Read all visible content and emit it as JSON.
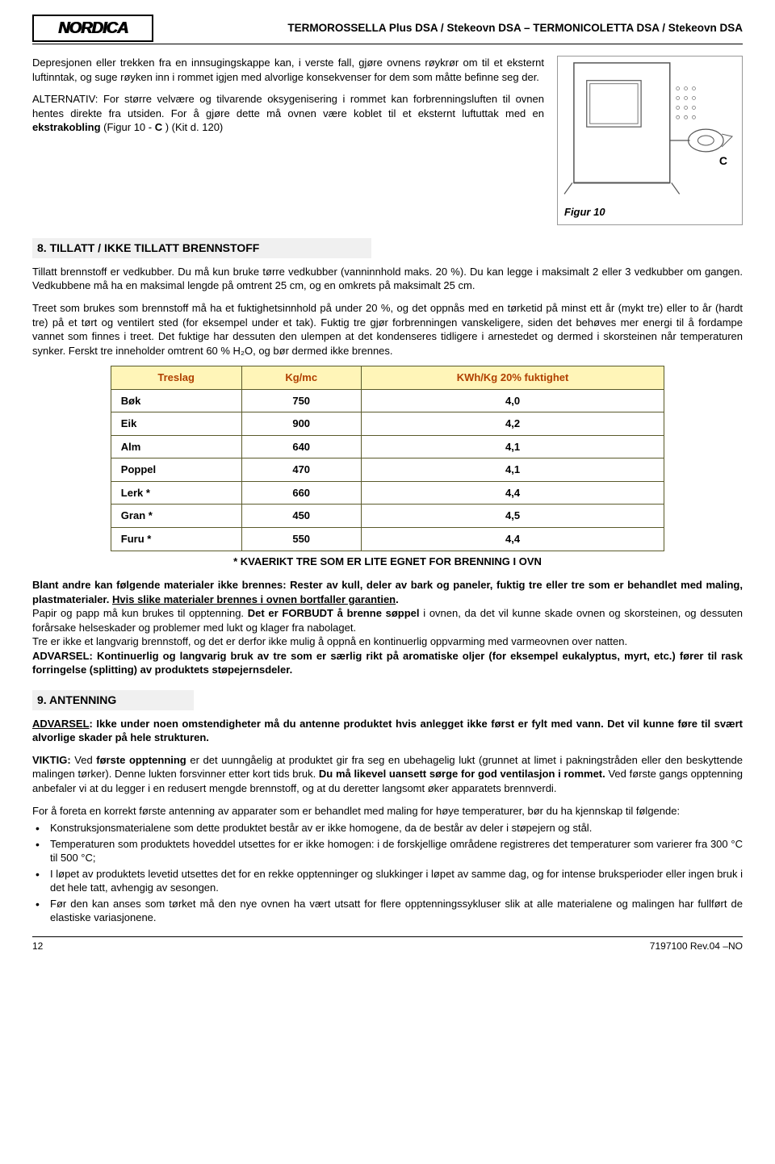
{
  "header": {
    "logo_text": "NORDICA",
    "title": "TERMOROSSELLA Plus DSA / Stekeovn DSA – TERMONICOLETTA DSA / Stekeovn DSA"
  },
  "intro": {
    "p1": "Depresjonen eller trekken fra en innsugingskappe kan, i verste fall, gjøre ovnens røykrør om til et eksternt luftinntak, og suge røyken inn i rommet igjen med alvorlige konsekvenser for dem som måtte befinne seg der.",
    "p2_prefix": "ALTERNATIV: ",
    "p2_body": "For større velvære og tilvarende oksygenisering i rommet kan forbrenningsluften til ovnen hentes direkte fra utsiden. For å gjøre dette må ovnen være koblet til et eksternt luftuttak med en ",
    "p2_bold": "ekstrakobling",
    "p2_after": " (Figur 10 - ",
    "p2_c": "C",
    "p2_end": " ) (Kit d. 120)"
  },
  "figure": {
    "label_c": "C",
    "caption": "Figur 10"
  },
  "section8": {
    "title": "8.  TILLATT / IKKE TILLATT BRENNSTOFF",
    "p1": "Tillatt brennstoff er vedkubber. Du må kun bruke tørre vedkubber (vanninnhold maks. 20 %). Du kan legge i maksimalt 2 eller 3 vedkubber om gangen. Vedkubbene må ha en maksimal lengde på omtrent 25 cm, og en omkrets på maksimalt 25 cm.",
    "p2": "Treet som brukes som brennstoff må ha et fuktighetsinnhold på under 20 %, og det oppnås med en tørketid på minst ett år (mykt tre) eller to år (hardt tre) på et tørt og ventilert sted (for eksempel under et tak). Fuktig tre gjør forbrenningen vanskeligere, siden det behøves mer energi til å fordampe vannet som finnes i treet. Det fuktige har dessuten den ulempen at det kondenseres tidligere i arnestedet og dermed i skorsteinen når temperaturen synker. Ferskt tre inneholder omtrent 60 % H₂O, og bør dermed ikke brennes."
  },
  "wood_table": {
    "columns": [
      "Treslag",
      "Kg/mc",
      "KWh/Kg  20% fuktighet"
    ],
    "rows": [
      [
        "Bøk",
        "750",
        "4,0"
      ],
      [
        "Eik",
        "900",
        "4,2"
      ],
      [
        "Alm",
        "640",
        "4,1"
      ],
      [
        "Poppel",
        "470",
        "4,1"
      ],
      [
        "Lerk *",
        "660",
        "4,4"
      ],
      [
        "Gran *",
        "450",
        "4,5"
      ],
      [
        "Furu *",
        "550",
        "4,4"
      ]
    ],
    "note": "* KVAERIKT TRE SOM ER LITE EGNET FOR BRENNING I OVN",
    "header_bg": "#fff5b8",
    "header_color": "#b04000",
    "border_color": "#5a5a2a"
  },
  "warning_block": {
    "line1a": "Blant andre kan følgende materialer ikke brennes: Rester av kull, deler av bark og paneler, fuktig tre eller tre som er behandlet med maling, plastmaterialer. ",
    "line1b": "Hvis slike materialer brennes i ovnen bortfaller garantien",
    "line1c": ".",
    "line2a": "Papir og papp må kun brukes til opptenning. ",
    "line2b": "Det er FORBUDT å brenne søppel",
    "line2c": " i ovnen, da det vil kunne skade ovnen og skorsteinen, og dessuten forårsake helseskader og problemer med lukt og klager fra nabolaget.",
    "line3": "Tre er ikke et langvarig brennstoff, og det er derfor ikke mulig å oppnå en kontinuerlig oppvarming med varmeovnen over natten.",
    "line4": "ADVARSEL: Kontinuerlig og langvarig bruk av tre som er særlig rikt på aromatiske oljer (for eksempel eukalyptus, myrt, etc.) fører til rask forringelse (splitting) av produktets støpejernsdeler."
  },
  "section9": {
    "title": "9.  ANTENNING",
    "adv_prefix": "ADVARSEL",
    "adv_body": ": Ikke under noen omstendigheter må du antenne produktet hvis anlegget ikke først er fylt med vann. Det vil kunne føre til svært alvorlige skader på hele strukturen.",
    "viktig_prefix": "VIKTIG:",
    "viktig_body_a": " Ved ",
    "viktig_body_b": "første opptenning",
    "viktig_body_c": " er det uunngåelig at produktet gir fra seg en ubehagelig lukt (grunnet at limet i pakningstråden eller den beskyttende malingen tørker). Denne lukten forsvinner etter kort tids bruk. ",
    "viktig_body_d": "Du må likevel uansett sørge for god ventilasjon i rommet.",
    "viktig_body_e": " Ved første gangs opptenning anbefaler vi at du legger i en redusert mengde brennstoff, og at du deretter langsomt øker apparatets brennverdi.",
    "p_intro": "For å foreta en korrekt første antenning av apparater som er behandlet med maling for høye temperaturer, bør du ha kjennskap til følgende:",
    "bullets": [
      "Konstruksjonsmaterialene som dette produktet består av er ikke homogene, da de består av deler i støpejern og stål.",
      "Temperaturen som produktets hoveddel utsettes for er ikke homogen: i de forskjellige områdene registreres det temperaturer som varierer fra 300 °C til 500 °C;",
      "I løpet av produktets levetid utsettes det for en rekke opptenninger og slukkinger i løpet av samme dag, og for intense bruksperioder eller ingen bruk i det hele tatt, avhengig av sesongen.",
      "Før den kan anses som tørket må den nye ovnen ha vært utsatt for flere opptenningssykluser slik at alle materialene og malingen har fullført de elastiske variasjonene."
    ]
  },
  "footer": {
    "page": "12",
    "rev": "7197100 Rev.04 –NO"
  }
}
